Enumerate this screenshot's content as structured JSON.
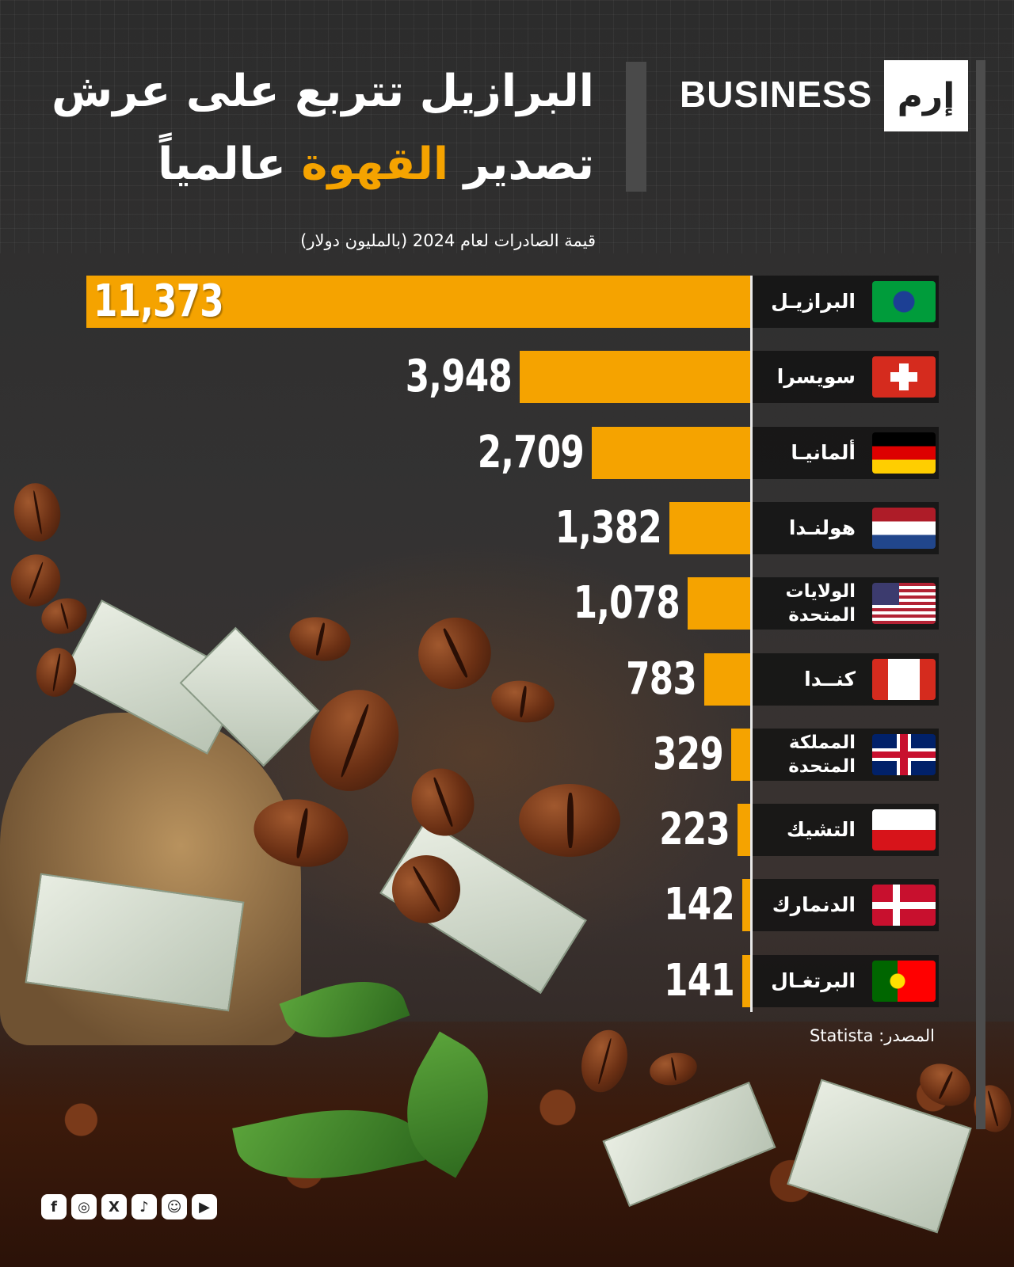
{
  "brand": {
    "word": "BUSINESS",
    "logo_text": "إرم"
  },
  "header": {
    "title_line1": "البرازيل تتربع على عرش",
    "title_line2_start": "تصدير",
    "title_highlight": "القهوة",
    "title_line2_end": "عالمياً",
    "subtitle": "قيمة الصادرات لعام 2024 (بالمليون دولار)"
  },
  "colors": {
    "bar": "#f5a300",
    "highlight": "#f5a300",
    "background": "#2e2e2e"
  },
  "chart_data": {
    "type": "bar",
    "orientation": "horizontal",
    "title": "البرازيل تتربع على عرش تصدير القهوة عالمياً",
    "subtitle": "قيمة الصادرات لعام 2024 (بالمليون دولار)",
    "categories": [
      "البرازيـل",
      "سويسرا",
      "ألمانيـا",
      "هولنـدا",
      "الولايات المتحدة",
      "كنــدا",
      "المملكة المتحدة",
      "التشيك",
      "الدنمارك",
      "البرتغـال"
    ],
    "values": [
      11373,
      3948,
      2709,
      1382,
      1078,
      783,
      329,
      223,
      142,
      141
    ],
    "value_labels": [
      "11,373",
      "3,948",
      "2,709",
      "1,382",
      "1,078",
      "783",
      "329",
      "223",
      "142",
      "141"
    ],
    "flags": [
      "brazil-flag-icon",
      "switzerland-flag-icon",
      "germany-flag-icon",
      "netherlands-flag-icon",
      "usa-flag-icon",
      "canada-flag-icon",
      "uk-flag-icon",
      "czech-flag-icon",
      "denmark-flag-icon",
      "portugal-flag-icon"
    ],
    "xlim": [
      0,
      11373
    ],
    "grid": false
  },
  "source": "المصدر: Statista",
  "social": {
    "icons": [
      "facebook-icon",
      "instagram-icon",
      "x-icon",
      "tiktok-icon",
      "snapchat-icon",
      "youtube-icon"
    ]
  }
}
